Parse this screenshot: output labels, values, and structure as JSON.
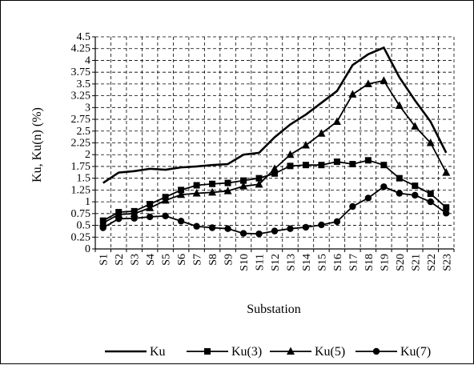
{
  "chart_data": {
    "type": "line",
    "xlabel": "Substation",
    "ylabel": "Ku, Ku(n) (%)",
    "ylim": [
      0,
      4.5
    ],
    "yticks": [
      "0",
      "0.25",
      "0.5",
      "0.75",
      "1",
      "1.25",
      "1.5",
      "1.75",
      "2",
      "2.25",
      "2.5",
      "2.75",
      "3",
      "3.25",
      "3.5",
      "3.75",
      "4",
      "4.25",
      "4.5"
    ],
    "categories": [
      "S1",
      "S2",
      "S3",
      "S4",
      "S5",
      "S6",
      "S7",
      "S8",
      "S9",
      "S10",
      "S11",
      "S12",
      "S13",
      "S14",
      "S15",
      "S16",
      "S17",
      "S18",
      "S19",
      "S20",
      "S21",
      "S22",
      "S23"
    ],
    "grid": true,
    "legend_position": "bottom",
    "series": [
      {
        "name": "Ku",
        "marker": "none",
        "values": [
          1.4,
          1.62,
          1.65,
          1.7,
          1.68,
          1.73,
          1.75,
          1.78,
          1.8,
          2.0,
          2.04,
          2.37,
          2.64,
          2.85,
          3.1,
          3.35,
          3.9,
          4.13,
          4.27,
          3.64,
          3.15,
          2.7,
          2.04
        ]
      },
      {
        "name": "Ku(3)",
        "marker": "square",
        "values": [
          0.6,
          0.78,
          0.8,
          0.95,
          1.1,
          1.25,
          1.35,
          1.38,
          1.4,
          1.45,
          1.5,
          1.6,
          1.76,
          1.78,
          1.78,
          1.85,
          1.8,
          1.88,
          1.78,
          1.5,
          1.34,
          1.17,
          0.88
        ]
      },
      {
        "name": "Ku(5)",
        "marker": "triangle",
        "values": [
          0.55,
          0.73,
          0.75,
          0.87,
          1.03,
          1.15,
          1.18,
          1.2,
          1.23,
          1.33,
          1.37,
          1.7,
          2.0,
          2.2,
          2.45,
          2.7,
          3.28,
          3.5,
          3.57,
          3.04,
          2.6,
          2.25,
          1.62
        ]
      },
      {
        "name": "Ku(7)",
        "marker": "circle",
        "values": [
          0.45,
          0.64,
          0.65,
          0.68,
          0.7,
          0.59,
          0.48,
          0.45,
          0.43,
          0.33,
          0.32,
          0.38,
          0.43,
          0.46,
          0.51,
          0.58,
          0.9,
          1.08,
          1.32,
          1.18,
          1.14,
          1.0,
          0.76
        ]
      }
    ]
  }
}
